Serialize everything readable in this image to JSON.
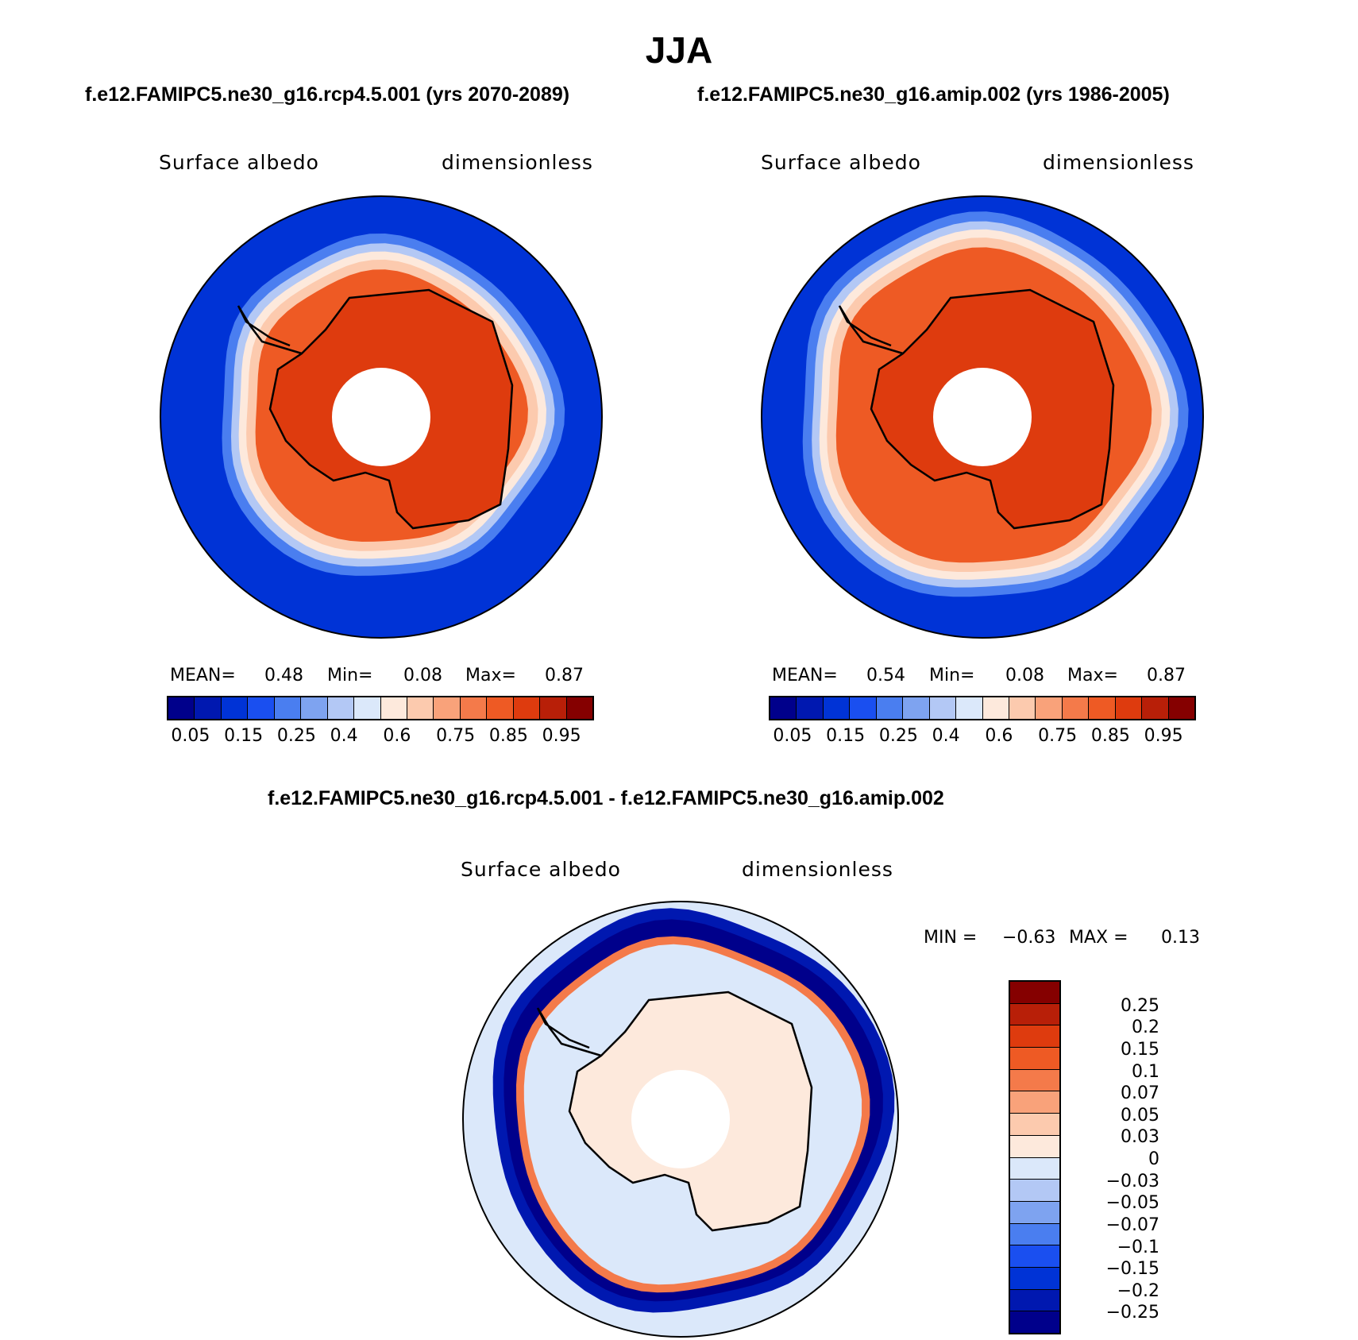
{
  "title": "JJA",
  "subtitle_left": "f.e12.FAMIPC5.ne30_g16.rcp4.5.001 (yrs 2070-2089)",
  "subtitle_right": "f.e12.FAMIPC5.ne30_g16.amip.002 (yrs 1986-2005)",
  "diff_title": "f.e12.FAMIPC5.ne30_g16.rcp4.5.001 - f.e12.FAMIPC5.ne30_g16.amip.002",
  "panels": [
    {
      "variable": "Surface albedo",
      "units": "dimensionless",
      "mean_label": "MEAN=",
      "mean_value": "0.48",
      "min_label": "Min=",
      "min_value": "0.08",
      "max_label": "Max=",
      "max_value": "0.87"
    },
    {
      "variable": "Surface albedo",
      "units": "dimensionless",
      "mean_label": "MEAN=",
      "mean_value": "0.54",
      "min_label": "Min=",
      "min_value": "0.08",
      "max_label": "Max=",
      "max_value": "0.87"
    }
  ],
  "diff_panel": {
    "variable": "Surface albedo",
    "units": "dimensionless",
    "min_label": "MIN =",
    "min_value": "−0.63",
    "max_label": "MAX =",
    "max_value": "0.13"
  },
  "abs_colorbar": {
    "colors": [
      "#00008b",
      "#0018b0",
      "#0033d6",
      "#1a4ff0",
      "#4a7ef0",
      "#7ea3f0",
      "#b3c8f5",
      "#dbe8fa",
      "#fde9dc",
      "#fccaae",
      "#f9a27a",
      "#f47a4a",
      "#ee5a24",
      "#de3b0e",
      "#b81f08",
      "#850000"
    ],
    "ticks": [
      "0.05",
      "0.15",
      "0.25",
      "0.4",
      "0.6",
      "0.75",
      "0.85",
      "0.95"
    ]
  },
  "diff_colorbar": {
    "colors": [
      "#850000",
      "#b81f08",
      "#de3b0e",
      "#ee5a24",
      "#f47a4a",
      "#f9a27a",
      "#fccaae",
      "#fde9dc",
      "#dbe8fa",
      "#b3c8f5",
      "#7ea3f0",
      "#4a7ef0",
      "#1a4ff0",
      "#0033d6",
      "#0018b0",
      "#00008b"
    ],
    "ticks": [
      "0.25",
      "0.2",
      "0.15",
      "0.1",
      "0.07",
      "0.05",
      "0.03",
      "0",
      "−0.03",
      "−0.05",
      "−0.07",
      "−0.1",
      "−0.15",
      "−0.2",
      "−0.25"
    ]
  },
  "map_colors": {
    "ocean": "#0033d6",
    "edge1": "#4a7ef0",
    "edge2": "#b3c8f5",
    "edge3": "#fde9dc",
    "edge4": "#fccaae",
    "ice": "#ee5a24",
    "continent": "#de3b0e",
    "diff_bg": "#dbe8fa",
    "diff_land": "#fde9dc",
    "diff_ring": "#0018b0",
    "diff_ring_dark": "#00008b",
    "diff_pos": "#f47a4a"
  }
}
